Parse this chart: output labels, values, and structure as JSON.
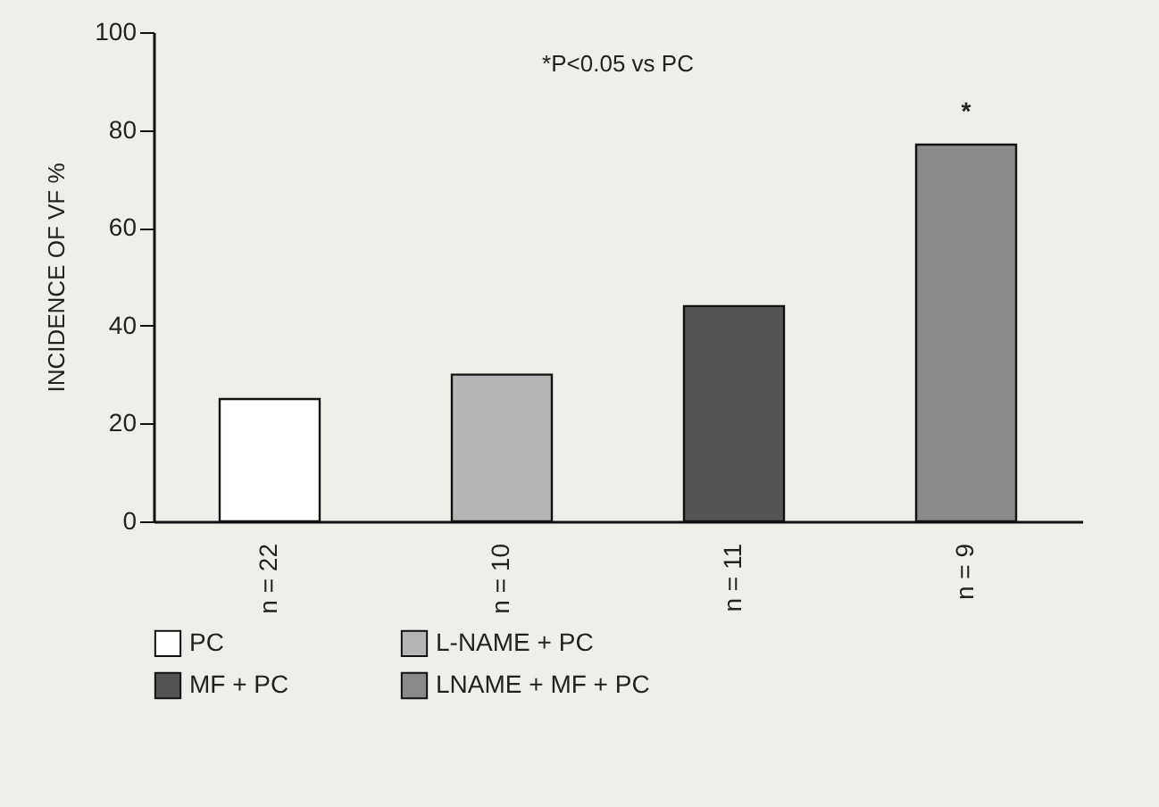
{
  "chart_data": {
    "type": "bar",
    "ylabel": "INCIDENCE OF VF  %",
    "categories": [
      "n = 22",
      "n = 10",
      "n = 11",
      "n = 9"
    ],
    "series": [
      {
        "name": "PC",
        "color": "#ffffff",
        "values": [
          25,
          null,
          null,
          null
        ]
      },
      {
        "name": "L-NAME + PC",
        "color": "#b5b5b5",
        "values": [
          null,
          30,
          null,
          null
        ]
      },
      {
        "name": "MF + PC",
        "color": "#555555",
        "values": [
          null,
          null,
          44,
          null
        ]
      },
      {
        "name": "LNAME + MF + PC",
        "color": "#8a8a8a",
        "values": [
          null,
          null,
          null,
          77
        ]
      }
    ],
    "ylim": [
      0,
      100
    ],
    "yticks": [
      0,
      20,
      40,
      60,
      80,
      100
    ],
    "grid": false,
    "legend": "bottom",
    "annotations": [
      "*P<0.05 vs PC",
      {
        "text": "*",
        "x": "n = 9",
        "y": 77
      }
    ]
  }
}
